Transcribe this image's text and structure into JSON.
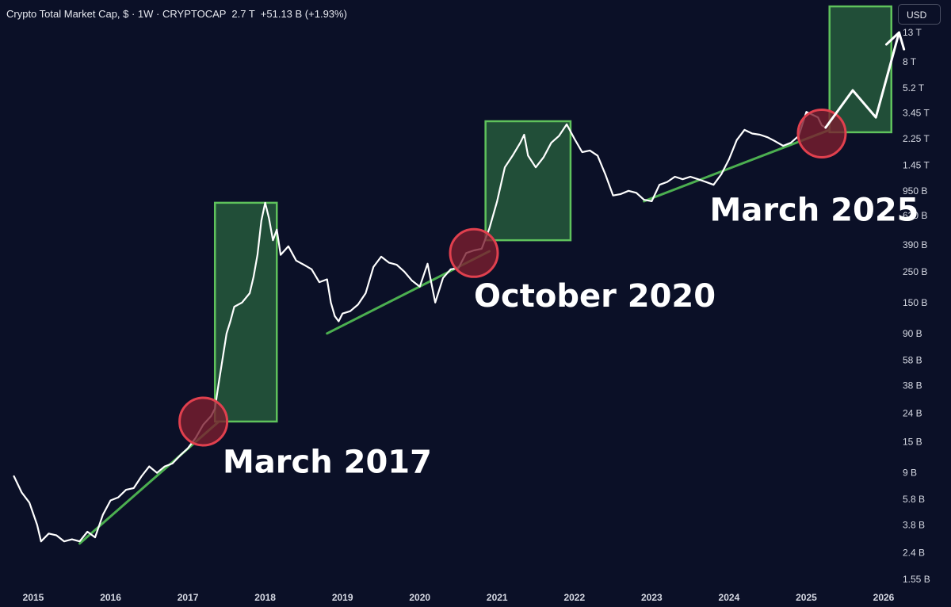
{
  "header": {
    "title": "Crypto Total Market Cap, $ · 1W · CRYPTOCAP  2.7 T  +51.13 B (+1.93%)"
  },
  "currency_button": "USD",
  "colors": {
    "background": "#0b1027",
    "price_line": "#ffffff",
    "trendline": "#4caf50",
    "box_fill": "#24543a",
    "box_stroke": "#5fc25c",
    "circle_fill": "#7a1e30",
    "circle_stroke": "#e0404e",
    "arrow": "#ffffff"
  },
  "chart_data": {
    "type": "line",
    "title": "Crypto Total Market Cap",
    "x_axis": {
      "tick_labels": [
        "2015",
        "2016",
        "2017",
        "2018",
        "2019",
        "2020",
        "2021",
        "2022",
        "2023",
        "2024",
        "2025",
        "2026"
      ],
      "range": [
        2015.0,
        2026.0
      ]
    },
    "y_axis": {
      "scale": "log",
      "tick_labels": [
        "13 T",
        "8 T",
        "5.2 T",
        "3.45 T",
        "2.25 T",
        "1.45 T",
        "950 B",
        "630 B",
        "390 B",
        "250 B",
        "150 B",
        "90 B",
        "58 B",
        "38 B",
        "24 B",
        "15 B",
        "9 B",
        "5.8 B",
        "3.8 B",
        "2.4 B",
        "1.55 B"
      ],
      "tick_values_billion": [
        13000,
        8000,
        5200,
        3450,
        2250,
        1450,
        950,
        630,
        390,
        250,
        150,
        90,
        58,
        38,
        24,
        15,
        9,
        5.8,
        3.8,
        2.4,
        1.55
      ]
    },
    "series": [
      {
        "unit": "billion USD",
        "points": [
          [
            2014.75,
            8.5
          ],
          [
            2014.85,
            6.5
          ],
          [
            2014.95,
            5.5
          ],
          [
            2015.05,
            3.8
          ],
          [
            2015.1,
            2.9
          ],
          [
            2015.2,
            3.3
          ],
          [
            2015.3,
            3.2
          ],
          [
            2015.4,
            2.9
          ],
          [
            2015.5,
            3.0
          ],
          [
            2015.6,
            2.9
          ],
          [
            2015.7,
            3.4
          ],
          [
            2015.8,
            3.1
          ],
          [
            2015.9,
            4.5
          ],
          [
            2016.0,
            5.7
          ],
          [
            2016.1,
            6.0
          ],
          [
            2016.2,
            6.8
          ],
          [
            2016.3,
            7.0
          ],
          [
            2016.4,
            8.5
          ],
          [
            2016.5,
            10.0
          ],
          [
            2016.6,
            9.0
          ],
          [
            2016.7,
            10.0
          ],
          [
            2016.8,
            10.5
          ],
          [
            2016.9,
            12.0
          ],
          [
            2017.0,
            13.5
          ],
          [
            2017.1,
            16.0
          ],
          [
            2017.2,
            20.0
          ],
          [
            2017.3,
            23.0
          ],
          [
            2017.35,
            26.0
          ],
          [
            2017.4,
            40.0
          ],
          [
            2017.45,
            60.0
          ],
          [
            2017.5,
            90.0
          ],
          [
            2017.55,
            110.0
          ],
          [
            2017.6,
            140.0
          ],
          [
            2017.7,
            150.0
          ],
          [
            2017.8,
            175.0
          ],
          [
            2017.85,
            230.0
          ],
          [
            2017.9,
            330.0
          ],
          [
            2017.95,
            580.0
          ],
          [
            2018.0,
            780.0
          ],
          [
            2018.05,
            600.0
          ],
          [
            2018.1,
            420.0
          ],
          [
            2018.15,
            500.0
          ],
          [
            2018.2,
            330.0
          ],
          [
            2018.3,
            380.0
          ],
          [
            2018.4,
            300.0
          ],
          [
            2018.5,
            280.0
          ],
          [
            2018.6,
            260.0
          ],
          [
            2018.7,
            210.0
          ],
          [
            2018.8,
            220.0
          ],
          [
            2018.85,
            150.0
          ],
          [
            2018.9,
            120.0
          ],
          [
            2018.95,
            110.0
          ],
          [
            2019.0,
            125.0
          ],
          [
            2019.1,
            130.0
          ],
          [
            2019.2,
            145.0
          ],
          [
            2019.3,
            175.0
          ],
          [
            2019.4,
            270.0
          ],
          [
            2019.5,
            320.0
          ],
          [
            2019.6,
            290.0
          ],
          [
            2019.7,
            280.0
          ],
          [
            2019.8,
            250.0
          ],
          [
            2019.9,
            215.0
          ],
          [
            2020.0,
            195.0
          ],
          [
            2020.1,
            285.0
          ],
          [
            2020.2,
            150.0
          ],
          [
            2020.3,
            225.0
          ],
          [
            2020.4,
            260.0
          ],
          [
            2020.5,
            265.0
          ],
          [
            2020.6,
            340.0
          ],
          [
            2020.7,
            355.0
          ],
          [
            2020.8,
            365.0
          ],
          [
            2020.9,
            510.0
          ],
          [
            2021.0,
            800.0
          ],
          [
            2021.1,
            1400.0
          ],
          [
            2021.2,
            1700.0
          ],
          [
            2021.3,
            2100.0
          ],
          [
            2021.35,
            2400.0
          ],
          [
            2021.4,
            1700.0
          ],
          [
            2021.5,
            1400.0
          ],
          [
            2021.6,
            1650.0
          ],
          [
            2021.7,
            2100.0
          ],
          [
            2021.8,
            2350.0
          ],
          [
            2021.9,
            2850.0
          ],
          [
            2022.0,
            2250.0
          ],
          [
            2022.1,
            1800.0
          ],
          [
            2022.2,
            1850.0
          ],
          [
            2022.3,
            1700.0
          ],
          [
            2022.4,
            1250.0
          ],
          [
            2022.5,
            880.0
          ],
          [
            2022.6,
            900.0
          ],
          [
            2022.7,
            950.0
          ],
          [
            2022.8,
            920.0
          ],
          [
            2022.9,
            820.0
          ],
          [
            2023.0,
            800.0
          ],
          [
            2023.1,
            1050.0
          ],
          [
            2023.2,
            1100.0
          ],
          [
            2023.3,
            1200.0
          ],
          [
            2023.4,
            1150.0
          ],
          [
            2023.5,
            1200.0
          ],
          [
            2023.6,
            1150.0
          ],
          [
            2023.7,
            1100.0
          ],
          [
            2023.8,
            1050.0
          ],
          [
            2023.9,
            1250.0
          ],
          [
            2024.0,
            1600.0
          ],
          [
            2024.1,
            2200.0
          ],
          [
            2024.2,
            2600.0
          ],
          [
            2024.3,
            2450.0
          ],
          [
            2024.4,
            2400.0
          ],
          [
            2024.5,
            2300.0
          ],
          [
            2024.6,
            2150.0
          ],
          [
            2024.7,
            2000.0
          ],
          [
            2024.8,
            2100.0
          ],
          [
            2024.9,
            2350.0
          ],
          [
            2025.0,
            3500.0
          ],
          [
            2025.1,
            3300.0
          ],
          [
            2025.15,
            3200.0
          ],
          [
            2025.2,
            2800.0
          ],
          [
            2025.25,
            2700.0
          ]
        ]
      }
    ],
    "trendlines": [
      {
        "from": [
          2015.6,
          2.8
        ],
        "to": [
          2017.4,
          21.0
        ]
      },
      {
        "from": [
          2018.8,
          90.0
        ],
        "to": [
          2020.9,
          350.0
        ]
      },
      {
        "from": [
          2022.9,
          800.0
        ],
        "to": [
          2025.3,
          2600.0
        ]
      }
    ],
    "highlight_boxes": [
      {
        "x": [
          2017.35,
          2018.15
        ],
        "y": [
          21.0,
          780.0
        ]
      },
      {
        "x": [
          2020.85,
          2021.95
        ],
        "y": [
          420.0,
          3000.0
        ]
      },
      {
        "x": [
          2025.3,
          2026.1
        ],
        "y": [
          2500.0,
          20000.0
        ]
      }
    ],
    "highlight_circles": [
      {
        "at": [
          2017.2,
          21.0
        ]
      },
      {
        "at": [
          2020.7,
          340.0
        ]
      },
      {
        "at": [
          2025.2,
          2450.0
        ]
      }
    ],
    "projection": [
      [
        2025.25,
        2700.0
      ],
      [
        2025.6,
        5000.0
      ],
      [
        2025.9,
        3200.0
      ],
      [
        2026.2,
        13000.0
      ]
    ],
    "annotations": [
      "March 2017",
      "October 2020",
      "March 2025"
    ]
  }
}
